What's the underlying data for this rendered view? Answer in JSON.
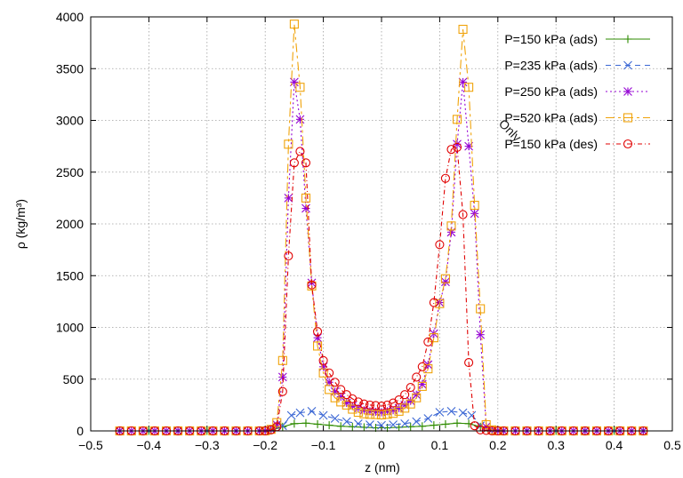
{
  "chart_data": {
    "type": "line",
    "title": "",
    "xlabel": "z (nm)",
    "ylabel": "ρ (kg/m³)",
    "xlim": [
      -0.5,
      0.5
    ],
    "ylim": [
      0,
      4000
    ],
    "x_ticks": [
      "−0.5",
      "−0.4",
      "−0.3",
      "−0.2",
      "−0.1",
      "0",
      "0.1",
      "0.2",
      "0.3",
      "0.4",
      "0.5"
    ],
    "y_ticks": [
      "0",
      "500",
      "1000",
      "1500",
      "2000",
      "2500",
      "3000",
      "3500",
      "4000"
    ],
    "grid": true,
    "legend_position": "top-right",
    "watermark": "Only",
    "series": [
      {
        "name": "P=150 kPa (ads)",
        "color": "#2e8b00",
        "marker": "plus",
        "dash": "",
        "x": [
          -0.45,
          -0.4,
          -0.35,
          -0.3,
          -0.25,
          -0.21,
          -0.19,
          -0.17,
          -0.15,
          -0.13,
          -0.11,
          -0.09,
          -0.07,
          -0.05,
          -0.03,
          -0.01,
          0.01,
          0.03,
          0.05,
          0.07,
          0.09,
          0.11,
          0.13,
          0.15,
          0.17,
          0.19,
          0.21,
          0.25,
          0.3,
          0.35,
          0.4,
          0.45
        ],
        "y": [
          0,
          0,
          0,
          0,
          0,
          0,
          5,
          40,
          70,
          75,
          65,
          55,
          45,
          40,
          35,
          30,
          30,
          35,
          40,
          45,
          55,
          65,
          75,
          70,
          40,
          5,
          0,
          0,
          0,
          0,
          0,
          0
        ]
      },
      {
        "name": "P=235 kPa (ads)",
        "color": "#3a66d4",
        "marker": "x",
        "dash": "6 5",
        "x": [
          -0.45,
          -0.4,
          -0.35,
          -0.3,
          -0.25,
          -0.2,
          -0.17,
          -0.155,
          -0.14,
          -0.12,
          -0.1,
          -0.08,
          -0.06,
          -0.04,
          -0.02,
          0,
          0.02,
          0.04,
          0.06,
          0.08,
          0.1,
          0.12,
          0.14,
          0.155,
          0.17,
          0.2,
          0.25,
          0.3,
          0.35,
          0.4,
          0.45
        ],
        "y": [
          0,
          0,
          0,
          0,
          0,
          0,
          50,
          150,
          175,
          190,
          150,
          120,
          90,
          70,
          60,
          55,
          60,
          70,
          90,
          120,
          180,
          190,
          175,
          150,
          50,
          0,
          0,
          0,
          0,
          0,
          0
        ]
      },
      {
        "name": "P=250 kPa (ads)",
        "color": "#9400d3",
        "marker": "star",
        "dash": "2 3",
        "x": [
          -0.45,
          -0.43,
          -0.41,
          -0.39,
          -0.37,
          -0.35,
          -0.33,
          -0.31,
          -0.29,
          -0.27,
          -0.25,
          -0.23,
          -0.21,
          -0.2,
          -0.19,
          -0.18,
          -0.17,
          -0.16,
          -0.15,
          -0.14,
          -0.13,
          -0.12,
          -0.11,
          -0.1,
          -0.09,
          -0.08,
          -0.07,
          -0.06,
          -0.05,
          -0.04,
          -0.03,
          -0.02,
          -0.01,
          0,
          0.01,
          0.02,
          0.03,
          0.04,
          0.05,
          0.06,
          0.07,
          0.08,
          0.09,
          0.1,
          0.11,
          0.12,
          0.13,
          0.14,
          0.15,
          0.16,
          0.17,
          0.18,
          0.19,
          0.2,
          0.21,
          0.23,
          0.25,
          0.27,
          0.29,
          0.31,
          0.33,
          0.35,
          0.37,
          0.39,
          0.41,
          0.43,
          0.45
        ],
        "y": [
          0,
          0,
          0,
          0,
          0,
          0,
          0,
          0,
          0,
          0,
          0,
          0,
          0,
          0,
          15,
          60,
          520,
          2250,
          3370,
          3010,
          2150,
          1430,
          900,
          620,
          470,
          380,
          330,
          270,
          240,
          220,
          200,
          190,
          185,
          180,
          190,
          200,
          220,
          250,
          290,
          350,
          450,
          640,
          940,
          1240,
          1440,
          1920,
          2770,
          3370,
          2750,
          2100,
          930,
          40,
          10,
          0,
          0,
          0,
          0,
          0,
          0,
          0,
          0,
          0,
          0,
          0,
          0,
          0,
          0
        ]
      },
      {
        "name": "P=520 kPa (ads)",
        "color": "#f0a30a",
        "marker": "square",
        "dash": "10 4 3 4",
        "x": [
          -0.45,
          -0.43,
          -0.41,
          -0.39,
          -0.37,
          -0.35,
          -0.33,
          -0.31,
          -0.29,
          -0.27,
          -0.25,
          -0.23,
          -0.21,
          -0.2,
          -0.19,
          -0.18,
          -0.17,
          -0.16,
          -0.15,
          -0.14,
          -0.13,
          -0.12,
          -0.11,
          -0.1,
          -0.09,
          -0.08,
          -0.07,
          -0.06,
          -0.05,
          -0.04,
          -0.03,
          -0.02,
          -0.01,
          0,
          0.01,
          0.02,
          0.03,
          0.04,
          0.05,
          0.06,
          0.07,
          0.08,
          0.09,
          0.1,
          0.11,
          0.12,
          0.13,
          0.14,
          0.15,
          0.16,
          0.17,
          0.18,
          0.19,
          0.2,
          0.21,
          0.23,
          0.25,
          0.27,
          0.29,
          0.31,
          0.33,
          0.35,
          0.37,
          0.39,
          0.41,
          0.43,
          0.45
        ],
        "y": [
          0,
          0,
          0,
          0,
          0,
          0,
          0,
          0,
          0,
          0,
          0,
          0,
          0,
          0,
          15,
          80,
          680,
          2770,
          3930,
          3320,
          2250,
          1400,
          820,
          560,
          400,
          320,
          280,
          250,
          210,
          180,
          165,
          160,
          158,
          155,
          160,
          170,
          190,
          220,
          260,
          320,
          430,
          600,
          900,
          1230,
          1470,
          1980,
          3010,
          3880,
          3320,
          2180,
          1180,
          60,
          10,
          0,
          0,
          0,
          0,
          0,
          0,
          0,
          0,
          0,
          0,
          0,
          0,
          0,
          0
        ]
      },
      {
        "name": "P=150 kPa (des)",
        "color": "#e00000",
        "marker": "circle",
        "dash": "5 3 1 3",
        "x": [
          -0.45,
          -0.43,
          -0.41,
          -0.39,
          -0.37,
          -0.35,
          -0.33,
          -0.31,
          -0.29,
          -0.27,
          -0.25,
          -0.23,
          -0.21,
          -0.2,
          -0.19,
          -0.18,
          -0.17,
          -0.16,
          -0.15,
          -0.14,
          -0.13,
          -0.12,
          -0.11,
          -0.1,
          -0.09,
          -0.08,
          -0.07,
          -0.06,
          -0.05,
          -0.04,
          -0.03,
          -0.02,
          -0.01,
          0,
          0.01,
          0.02,
          0.03,
          0.04,
          0.05,
          0.06,
          0.07,
          0.08,
          0.09,
          0.1,
          0.11,
          0.12,
          0.13,
          0.14,
          0.15,
          0.16,
          0.17,
          0.18,
          0.19,
          0.2,
          0.21,
          0.23,
          0.25,
          0.27,
          0.29,
          0.31,
          0.33,
          0.35,
          0.37,
          0.39,
          0.41,
          0.43,
          0.45
        ],
        "y": [
          0,
          0,
          0,
          0,
          0,
          0,
          0,
          0,
          0,
          0,
          0,
          0,
          0,
          0,
          10,
          40,
          380,
          1690,
          2590,
          2700,
          2590,
          1410,
          960,
          680,
          560,
          470,
          400,
          350,
          310,
          280,
          260,
          250,
          245,
          240,
          250,
          270,
          300,
          350,
          420,
          520,
          620,
          860,
          1240,
          1800,
          2440,
          2720,
          2740,
          2090,
          660,
          50,
          10,
          5,
          0,
          0,
          0,
          0,
          0,
          0,
          0,
          0,
          0,
          0,
          0,
          0,
          0,
          0,
          0
        ]
      }
    ]
  }
}
